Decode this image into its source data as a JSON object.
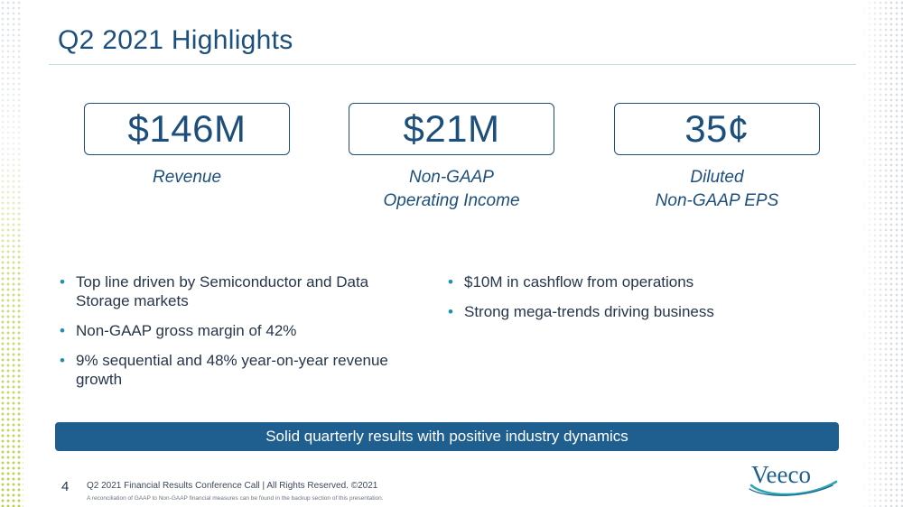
{
  "slide": {
    "title": "Q2 2021 Highlights",
    "page_number": "4",
    "footer": "Q2 2021 Financial Results Conference Call  |  All Rights Reserved. ©2021",
    "footnote": "A reconciliation of GAAP to Non-GAAP financial measures can be found in the backup section of this presentation."
  },
  "kpis": [
    {
      "value": "$146M",
      "label_lines": [
        "Revenue"
      ]
    },
    {
      "value": "$21M",
      "label_lines": [
        "Non-GAAP",
        "Operating Income"
      ]
    },
    {
      "value": "35¢",
      "label_lines": [
        "Diluted",
        "Non-GAAP EPS"
      ]
    }
  ],
  "bullets_left": [
    "Top line driven by Semiconductor and Data Storage markets",
    "Non-GAAP gross margin of 42%",
    "9% sequential and 48% year-on-year revenue growth"
  ],
  "bullets_right": [
    "$10M in cashflow from operations",
    "Strong mega-trends driving business"
  ],
  "bullet_symbol": "•",
  "banner": {
    "text": "Solid quarterly results with positive industry dynamics"
  },
  "logo": {
    "text": "Veeco"
  },
  "colors": {
    "primary": "#1d4f7c",
    "banner": "#1e5f8f",
    "accent_teal": "#1d8fb0",
    "accent_green": "#b9d04a"
  }
}
